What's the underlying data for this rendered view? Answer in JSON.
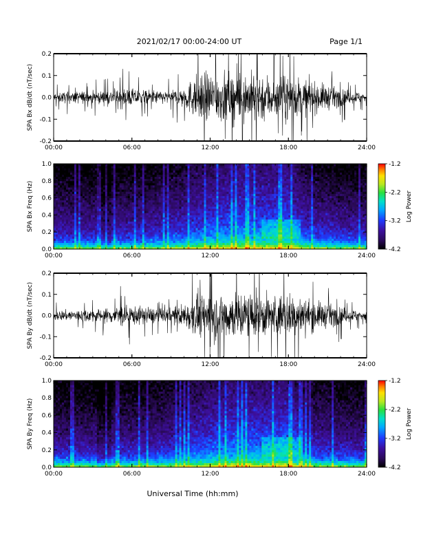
{
  "header": {
    "date_range": "2021/02/17  00:00-24:00 UT",
    "page": "Page 1/1"
  },
  "x_axis_label": "Universal Time (hh:mm)",
  "colors": {
    "trace": "#000000",
    "colormap": [
      "#000000",
      "#2a0a58",
      "#3d10a0",
      "#1e3cff",
      "#00a8ff",
      "#00e0c8",
      "#28e040",
      "#b8e820",
      "#ffe000",
      "#ff8000",
      "#ff0000"
    ]
  },
  "chart_data": [
    {
      "type": "line",
      "ylabel": "SPA Bx dB/dt (nT/sec)",
      "xlim": [
        "00:00",
        "24:00"
      ],
      "ylim": [
        -0.2,
        0.2
      ],
      "x_ticks": [
        "00:00",
        "06:00",
        "12:00",
        "18:00",
        "24:00"
      ],
      "y_ticks": [
        "-0.2",
        "-0.1",
        "0.0",
        "0.1",
        "0.2"
      ],
      "series": [
        {
          "envelope_hours": [
            0,
            2,
            4,
            5,
            7,
            9,
            10,
            11,
            12,
            13,
            14,
            15,
            16,
            17,
            18,
            19,
            20,
            21,
            22,
            23,
            24
          ],
          "envelope_amplitude": [
            0.04,
            0.05,
            0.05,
            0.08,
            0.06,
            0.05,
            0.09,
            0.18,
            0.2,
            0.2,
            0.2,
            0.2,
            0.2,
            0.17,
            0.18,
            0.15,
            0.12,
            0.1,
            0.07,
            0.05,
            0.04
          ]
        }
      ]
    },
    {
      "type": "heatmap",
      "ylabel": "SPA Bx Freq (Hz)",
      "xlim": [
        "00:00",
        "24:00"
      ],
      "ylim": [
        0.0,
        1.0
      ],
      "x_ticks": [
        "00:00",
        "06:00",
        "12:00",
        "18:00",
        "24:00"
      ],
      "y_ticks": [
        "0.0",
        "0.2",
        "0.4",
        "0.6",
        "0.8",
        "1.0"
      ],
      "colorbar": {
        "label": "Log Power",
        "range": [
          -4.2,
          -1.2
        ],
        "ticks": [
          "-1.2",
          "-2.2",
          "-3.2",
          "-4.2"
        ]
      }
    },
    {
      "type": "line",
      "ylabel": "SPA By dB/dt (nT/sec)",
      "xlim": [
        "00:00",
        "24:00"
      ],
      "ylim": [
        -0.2,
        0.2
      ],
      "x_ticks": [
        "00:00",
        "06:00",
        "12:00",
        "18:00",
        "24:00"
      ],
      "y_ticks": [
        "-0.2",
        "-0.1",
        "0.0",
        "0.1",
        "0.2"
      ],
      "series": [
        {
          "envelope_hours": [
            0,
            2,
            4,
            5,
            7,
            9,
            10,
            11,
            12,
            13,
            14,
            15,
            16,
            17,
            18,
            19,
            20,
            21,
            22,
            23,
            24
          ],
          "envelope_amplitude": [
            0.04,
            0.05,
            0.06,
            0.09,
            0.07,
            0.06,
            0.1,
            0.17,
            0.2,
            0.2,
            0.2,
            0.2,
            0.18,
            0.17,
            0.18,
            0.15,
            0.12,
            0.1,
            0.07,
            0.05,
            0.04
          ]
        }
      ]
    },
    {
      "type": "heatmap",
      "ylabel": "SPA By Freq (Hz)",
      "xlim": [
        "00:00",
        "24:00"
      ],
      "ylim": [
        0.0,
        1.0
      ],
      "x_ticks": [
        "00:00",
        "06:00",
        "12:00",
        "18:00",
        "24:00"
      ],
      "y_ticks": [
        "0.0",
        "0.2",
        "0.4",
        "0.6",
        "0.8",
        "1.0"
      ],
      "colorbar": {
        "label": "Log Power",
        "range": [
          -4.2,
          -1.2
        ],
        "ticks": [
          "-1.2",
          "-2.2",
          "-3.2",
          "-4.2"
        ]
      }
    }
  ]
}
